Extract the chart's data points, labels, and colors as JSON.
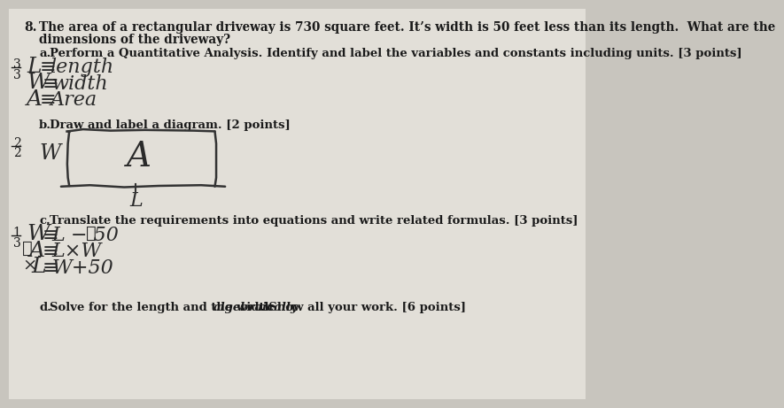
{
  "bg_color": "#c8c5be",
  "paper_color": "#e2dfd8",
  "title_number": "8.",
  "title_line1": "The area of a rectangular driveway is 730 square feet. It’s width is 50 feet less than its length.  What are the",
  "title_line2": "dimensions of the driveway?",
  "part_a_label": "a.",
  "part_a_text": "Perform a Quantitative Analysis. Identify and label the variables and constants including units. [3 points]",
  "part_a_score_top": "3",
  "part_a_score_bot": "3",
  "part_a_line1": "L ≡ length",
  "part_a_line2": "W ≡ width",
  "part_a_line3": "A ≡ Area",
  "part_b_label": "b.",
  "part_b_text": "Draw and label a diagram. [2 points]",
  "part_b_score_top": "2",
  "part_b_score_bot": "2",
  "part_b_W": "W",
  "part_b_A": "A",
  "part_b_L": "L",
  "part_c_label": "c.",
  "part_c_text": "Translate the requirements into equations and write related formulas. [3 points]",
  "part_c_score_top": "1",
  "part_c_score_bot": "3",
  "part_c_line1": "W ≡ L − 50✓",
  "part_c_line2": "✓A ≡ L×W",
  "part_c_line3": "× L ≡ W+50",
  "part_d_label": "d.",
  "part_d_normal": "Solve for the length and the width ",
  "part_d_italic": "algebraically",
  "part_d_end": ". Show all your work. [6 points]",
  "rect_color": "#333333",
  "text_color": "#1a1a1a",
  "handwrite_color": "#2a2a2a",
  "margin_color": "#1a1a1a"
}
